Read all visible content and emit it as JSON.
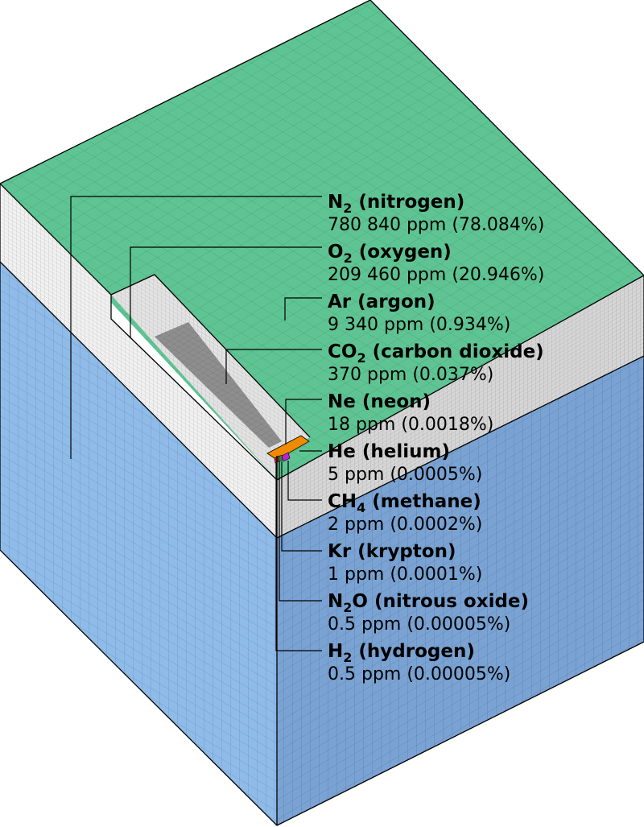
{
  "colors": {
    "top_green": "#5fc493",
    "front_blue": "#8fbbe8",
    "right_blue": "#7aa3d3",
    "band_light": "#f1f1f1",
    "band_right": "#d6d6d6",
    "ledge": "#e3e3e3",
    "co2_gray": "#8e8e8e",
    "neon_orange": "#f08a00",
    "helium_purple": "#c020d8",
    "methane_red": "#c01830",
    "krypton_green": "#2a8a2a"
  },
  "labels": [
    {
      "id": "nitrogen",
      "formula": "N",
      "sub": "2",
      "formula_tail": "",
      "name": " (nitrogen)",
      "value": "780 840 ppm (78.084%)"
    },
    {
      "id": "oxygen",
      "formula": "O",
      "sub": "2",
      "formula_tail": "",
      "name": " (oxygen)",
      "value": "209 460 ppm (20.946%)"
    },
    {
      "id": "argon",
      "formula": "Ar",
      "sub": "",
      "formula_tail": "",
      "name": " (argon)",
      "value": "9 340 ppm (0.934%)"
    },
    {
      "id": "carbon-dioxide",
      "formula": "CO",
      "sub": "2",
      "formula_tail": "",
      "name": " (carbon dioxide)",
      "value": "370 ppm (0.037%)"
    },
    {
      "id": "neon",
      "formula": "Ne",
      "sub": "",
      "formula_tail": "",
      "name": " (neon)",
      "value": "18 ppm (0.0018%)"
    },
    {
      "id": "helium",
      "formula": "He",
      "sub": "",
      "formula_tail": "",
      "name": " (helium)",
      "value": "5 ppm (0.0005%)"
    },
    {
      "id": "methane",
      "formula": "CH",
      "sub": "4",
      "formula_tail": "",
      "name": " (methane)",
      "value": "2 ppm (0.0002%)"
    },
    {
      "id": "krypton",
      "formula": "Kr",
      "sub": "",
      "formula_tail": "",
      "name": " (krypton)",
      "value": "1 ppm (0.0001%)"
    },
    {
      "id": "nitrous-oxide",
      "formula": "N",
      "sub": "2",
      "formula_tail": "O",
      "name": " (nitrous oxide)",
      "value": "0.5 ppm (0.00005%)"
    },
    {
      "id": "hydrogen",
      "formula": "H",
      "sub": "2",
      "formula_tail": "",
      "name": " (hydrogen)",
      "value": "0.5 ppm (0.00005%)"
    }
  ]
}
